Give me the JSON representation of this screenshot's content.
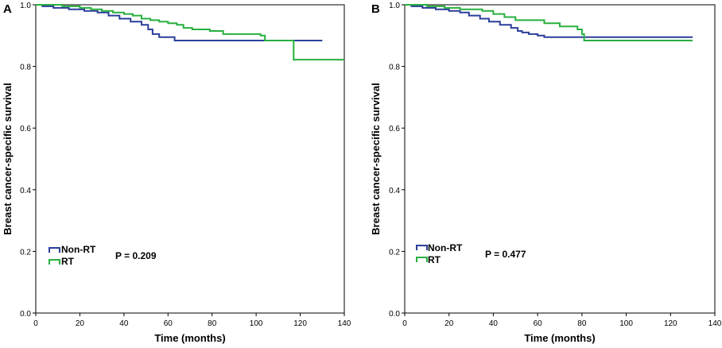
{
  "chart_data": [
    {
      "type": "line",
      "subtype": "kaplan-meier",
      "panel": "A",
      "xlabel": "Time (months)",
      "ylabel": "Breast cancer-specific survival",
      "xlim": [
        0,
        140
      ],
      "ylim": [
        0,
        1.0
      ],
      "xticks": [
        "0",
        "20",
        "40",
        "60",
        "80",
        "100",
        "120",
        "140"
      ],
      "yticks": [
        "0.0",
        "0.2",
        "0.4",
        "0.6",
        "0.8",
        "1.0"
      ],
      "grid": false,
      "legend": {
        "position": "bottom-left",
        "entries": [
          "Non-RT",
          "RT"
        ]
      },
      "annotation": "P = 0.209",
      "series": [
        {
          "name": "Non-RT",
          "color": "#2b3f9a",
          "steps": [
            [
              0,
              1.0
            ],
            [
              3,
              0.995
            ],
            [
              8,
              0.99
            ],
            [
              15,
              0.985
            ],
            [
              22,
              0.98
            ],
            [
              28,
              0.975
            ],
            [
              33,
              0.965
            ],
            [
              38,
              0.955
            ],
            [
              43,
              0.945
            ],
            [
              48,
              0.935
            ],
            [
              51,
              0.92
            ],
            [
              53,
              0.905
            ],
            [
              56,
              0.895
            ],
            [
              63,
              0.884
            ],
            [
              80,
              0.884
            ],
            [
              130,
              0.884
            ]
          ]
        },
        {
          "name": "RT",
          "color": "#28b03f",
          "steps": [
            [
              0,
              1.0
            ],
            [
              12,
              0.995
            ],
            [
              20,
              0.99
            ],
            [
              25,
              0.985
            ],
            [
              30,
              0.98
            ],
            [
              35,
              0.975
            ],
            [
              40,
              0.97
            ],
            [
              44,
              0.965
            ],
            [
              48,
              0.955
            ],
            [
              52,
              0.95
            ],
            [
              56,
              0.945
            ],
            [
              60,
              0.94
            ],
            [
              64,
              0.935
            ],
            [
              67,
              0.925
            ],
            [
              71,
              0.92
            ],
            [
              79,
              0.915
            ],
            [
              85,
              0.905
            ],
            [
              102,
              0.9
            ],
            [
              104,
              0.884
            ],
            [
              117,
              0.884
            ],
            [
              117,
              0.822
            ],
            [
              140,
              0.822
            ]
          ]
        }
      ]
    },
    {
      "type": "line",
      "subtype": "kaplan-meier",
      "panel": "B",
      "xlabel": "Time (months)",
      "ylabel": "Breast cancer-specific survival",
      "xlim": [
        0,
        140
      ],
      "ylim": [
        0,
        1.0
      ],
      "xticks": [
        "0",
        "20",
        "40",
        "60",
        "80",
        "100",
        "120",
        "140"
      ],
      "yticks": [
        "0.0",
        "0.2",
        "0.4",
        "0.6",
        "0.8",
        "1.0"
      ],
      "grid": false,
      "legend": {
        "position": "bottom-left",
        "entries": [
          "Non-RT",
          "RT"
        ]
      },
      "annotation": "P = 0.477",
      "series": [
        {
          "name": "Non-RT",
          "color": "#2b3f9a",
          "steps": [
            [
              0,
              1.0
            ],
            [
              3,
              0.995
            ],
            [
              8,
              0.99
            ],
            [
              14,
              0.985
            ],
            [
              20,
              0.98
            ],
            [
              25,
              0.975
            ],
            [
              29,
              0.965
            ],
            [
              34,
              0.955
            ],
            [
              38,
              0.945
            ],
            [
              43,
              0.935
            ],
            [
              48,
              0.925
            ],
            [
              51,
              0.915
            ],
            [
              53,
              0.91
            ],
            [
              56,
              0.905
            ],
            [
              60,
              0.9
            ],
            [
              63,
              0.895
            ],
            [
              80,
              0.895
            ],
            [
              130,
              0.895
            ]
          ]
        },
        {
          "name": "RT",
          "color": "#28b03f",
          "steps": [
            [
              0,
              1.0
            ],
            [
              10,
              0.995
            ],
            [
              18,
              0.99
            ],
            [
              25,
              0.985
            ],
            [
              35,
              0.98
            ],
            [
              40,
              0.97
            ],
            [
              45,
              0.96
            ],
            [
              50,
              0.95
            ],
            [
              63,
              0.94
            ],
            [
              70,
              0.93
            ],
            [
              78,
              0.92
            ],
            [
              80,
              0.905
            ],
            [
              81,
              0.884
            ],
            [
              130,
              0.884
            ]
          ]
        }
      ]
    }
  ]
}
